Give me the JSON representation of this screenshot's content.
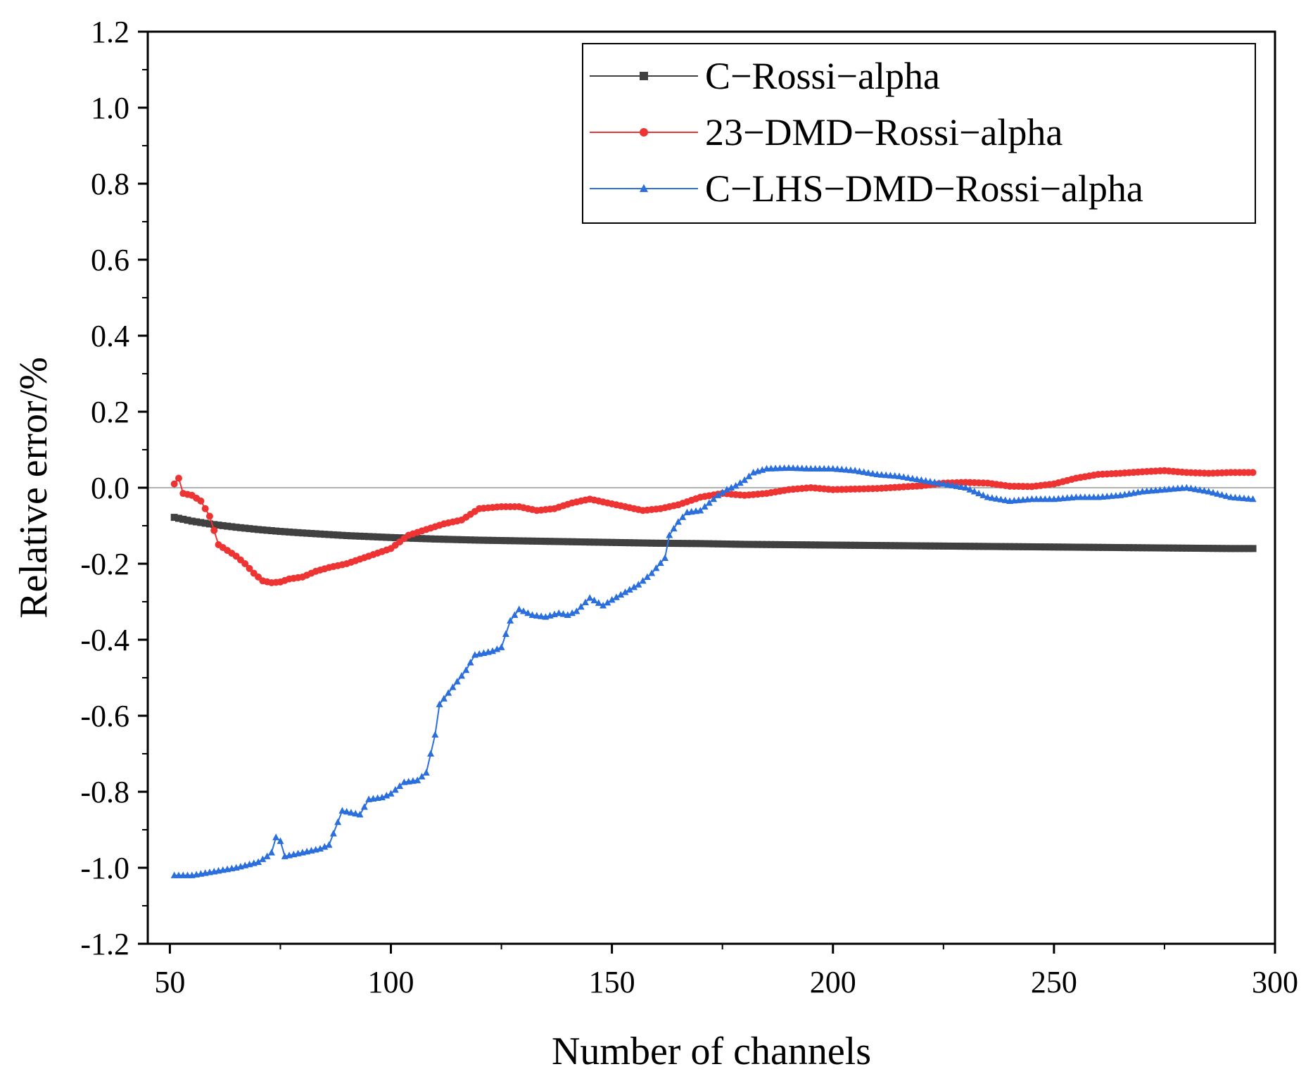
{
  "chart_data": {
    "type": "line",
    "title": "",
    "xlabel": "Number of channels",
    "ylabel": "Relative error/%",
    "xlim": [
      45,
      300
    ],
    "ylim": [
      -1.2,
      1.2
    ],
    "xticks": [
      50,
      100,
      150,
      200,
      250,
      300
    ],
    "yticks": [
      1.2,
      1.0,
      0.8,
      0.6,
      0.4,
      0.2,
      0.0,
      -0.2,
      -0.4,
      -0.6,
      -0.8,
      -1.0,
      -1.2
    ],
    "ytick_labels": [
      "1.2",
      "1.0",
      "0.8",
      "0.6",
      "0.4",
      "0.2",
      "0.0",
      "-0.2",
      "-0.4",
      "-0.6",
      "-0.8",
      "-1.0",
      "-1.2"
    ],
    "reference_line": 0.0,
    "legend_position": "top-right",
    "series": [
      {
        "name": "C−Rossi−alpha",
        "color": "#404040",
        "marker": "square",
        "points": [
          [
            51,
            -0.078
          ],
          [
            55,
            -0.088
          ],
          [
            60,
            -0.097
          ],
          [
            65,
            -0.104
          ],
          [
            70,
            -0.11
          ],
          [
            75,
            -0.115
          ],
          [
            80,
            -0.119
          ],
          [
            90,
            -0.126
          ],
          [
            100,
            -0.131
          ],
          [
            110,
            -0.135
          ],
          [
            120,
            -0.138
          ],
          [
            130,
            -0.14
          ],
          [
            140,
            -0.142
          ],
          [
            150,
            -0.144
          ],
          [
            160,
            -0.146
          ],
          [
            170,
            -0.147
          ],
          [
            180,
            -0.149
          ],
          [
            190,
            -0.15
          ],
          [
            200,
            -0.151
          ],
          [
            210,
            -0.152
          ],
          [
            220,
            -0.153
          ],
          [
            230,
            -0.154
          ],
          [
            240,
            -0.155
          ],
          [
            250,
            -0.156
          ],
          [
            260,
            -0.157
          ],
          [
            270,
            -0.158
          ],
          [
            280,
            -0.159
          ],
          [
            290,
            -0.16
          ],
          [
            295,
            -0.16
          ]
        ]
      },
      {
        "name": "23−DMD−Rossi−alpha",
        "color": "#ee3333",
        "marker": "circle",
        "points": [
          [
            51,
            0.01
          ],
          [
            52,
            0.025
          ],
          [
            53,
            -0.015
          ],
          [
            55,
            -0.02
          ],
          [
            57,
            -0.035
          ],
          [
            59,
            -0.075
          ],
          [
            61,
            -0.15
          ],
          [
            63,
            -0.165
          ],
          [
            65,
            -0.18
          ],
          [
            67,
            -0.2
          ],
          [
            69,
            -0.225
          ],
          [
            71,
            -0.245
          ],
          [
            73,
            -0.25
          ],
          [
            75,
            -0.248
          ],
          [
            77,
            -0.24
          ],
          [
            80,
            -0.235
          ],
          [
            83,
            -0.22
          ],
          [
            86,
            -0.21
          ],
          [
            90,
            -0.2
          ],
          [
            95,
            -0.18
          ],
          [
            100,
            -0.16
          ],
          [
            104,
            -0.125
          ],
          [
            108,
            -0.11
          ],
          [
            112,
            -0.095
          ],
          [
            116,
            -0.085
          ],
          [
            120,
            -0.055
          ],
          [
            125,
            -0.05
          ],
          [
            129,
            -0.05
          ],
          [
            133,
            -0.06
          ],
          [
            137,
            -0.055
          ],
          [
            141,
            -0.04
          ],
          [
            145,
            -0.03
          ],
          [
            149,
            -0.04
          ],
          [
            153,
            -0.05
          ],
          [
            157,
            -0.06
          ],
          [
            161,
            -0.055
          ],
          [
            165,
            -0.045
          ],
          [
            170,
            -0.025
          ],
          [
            175,
            -0.015
          ],
          [
            180,
            -0.02
          ],
          [
            185,
            -0.015
          ],
          [
            190,
            -0.005
          ],
          [
            195,
            0.0
          ],
          [
            200,
            -0.005
          ],
          [
            210,
            -0.002
          ],
          [
            220,
            0.005
          ],
          [
            225,
            0.012
          ],
          [
            230,
            0.014
          ],
          [
            235,
            0.012
          ],
          [
            240,
            0.004
          ],
          [
            245,
            0.003
          ],
          [
            250,
            0.01
          ],
          [
            255,
            0.025
          ],
          [
            260,
            0.035
          ],
          [
            265,
            0.038
          ],
          [
            270,
            0.042
          ],
          [
            275,
            0.045
          ],
          [
            280,
            0.04
          ],
          [
            285,
            0.038
          ],
          [
            290,
            0.04
          ],
          [
            295,
            0.04
          ]
        ]
      },
      {
        "name": "C−LHS−DMD−Rossi−alpha",
        "color": "#2a6fdb",
        "marker": "triangle",
        "points": [
          [
            51,
            -1.02
          ],
          [
            55,
            -1.02
          ],
          [
            60,
            -1.01
          ],
          [
            65,
            -1.0
          ],
          [
            70,
            -0.985
          ],
          [
            72,
            -0.97
          ],
          [
            73,
            -0.96
          ],
          [
            74,
            -0.92
          ],
          [
            75,
            -0.93
          ],
          [
            76,
            -0.97
          ],
          [
            80,
            -0.96
          ],
          [
            84,
            -0.95
          ],
          [
            86,
            -0.94
          ],
          [
            88,
            -0.88
          ],
          [
            89,
            -0.85
          ],
          [
            91,
            -0.855
          ],
          [
            93,
            -0.86
          ],
          [
            95,
            -0.82
          ],
          [
            98,
            -0.815
          ],
          [
            100,
            -0.805
          ],
          [
            103,
            -0.775
          ],
          [
            106,
            -0.77
          ],
          [
            108,
            -0.75
          ],
          [
            110,
            -0.65
          ],
          [
            111,
            -0.57
          ],
          [
            113,
            -0.54
          ],
          [
            115,
            -0.51
          ],
          [
            117,
            -0.48
          ],
          [
            119,
            -0.44
          ],
          [
            123,
            -0.43
          ],
          [
            125,
            -0.42
          ],
          [
            127,
            -0.35
          ],
          [
            129,
            -0.32
          ],
          [
            132,
            -0.335
          ],
          [
            135,
            -0.34
          ],
          [
            138,
            -0.33
          ],
          [
            140,
            -0.335
          ],
          [
            142,
            -0.325
          ],
          [
            145,
            -0.29
          ],
          [
            148,
            -0.31
          ],
          [
            150,
            -0.295
          ],
          [
            153,
            -0.275
          ],
          [
            156,
            -0.255
          ],
          [
            159,
            -0.225
          ],
          [
            162,
            -0.185
          ],
          [
            163,
            -0.125
          ],
          [
            165,
            -0.09
          ],
          [
            167,
            -0.065
          ],
          [
            170,
            -0.06
          ],
          [
            172,
            -0.04
          ],
          [
            174,
            -0.02
          ],
          [
            176,
            -0.005
          ],
          [
            178,
            0.005
          ],
          [
            180,
            0.02
          ],
          [
            182,
            0.04
          ],
          [
            185,
            0.05
          ],
          [
            190,
            0.052
          ],
          [
            195,
            0.05
          ],
          [
            200,
            0.05
          ],
          [
            205,
            0.045
          ],
          [
            210,
            0.035
          ],
          [
            215,
            0.03
          ],
          [
            220,
            0.02
          ],
          [
            225,
            0.01
          ],
          [
            230,
            0.0
          ],
          [
            235,
            -0.025
          ],
          [
            240,
            -0.035
          ],
          [
            245,
            -0.03
          ],
          [
            250,
            -0.03
          ],
          [
            255,
            -0.025
          ],
          [
            260,
            -0.025
          ],
          [
            265,
            -0.02
          ],
          [
            270,
            -0.01
          ],
          [
            275,
            -0.005
          ],
          [
            280,
            0.0
          ],
          [
            285,
            -0.01
          ],
          [
            290,
            -0.025
          ],
          [
            295,
            -0.03
          ]
        ]
      }
    ]
  }
}
